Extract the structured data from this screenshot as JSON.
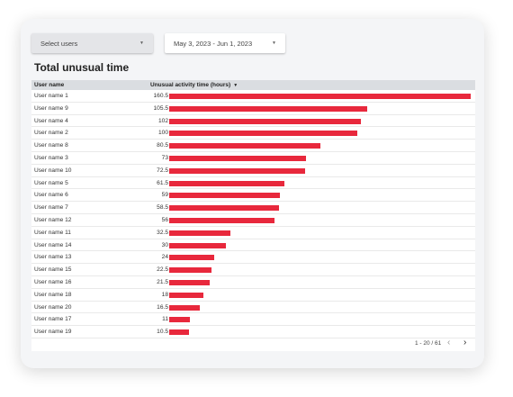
{
  "filters": {
    "users_label": "Select users",
    "date_range": "May 3, 2023 - Jun 1, 2023",
    "caret": "▼"
  },
  "title": "Total unusual time",
  "table": {
    "col_user": "User name",
    "col_time": "Unusual activity time (hours)",
    "sort_icon": "▼",
    "max_value": 160.5,
    "rows": [
      {
        "name": "User name 1",
        "value": 160.5
      },
      {
        "name": "User name 9",
        "value": 105.5
      },
      {
        "name": "User name 4",
        "value": 102
      },
      {
        "name": "User name 2",
        "value": 100
      },
      {
        "name": "User name 8",
        "value": 80.5
      },
      {
        "name": "User name 3",
        "value": 73
      },
      {
        "name": "User name 10",
        "value": 72.5
      },
      {
        "name": "User name 5",
        "value": 61.5
      },
      {
        "name": "User name 6",
        "value": 59
      },
      {
        "name": "User name 7",
        "value": 58.5
      },
      {
        "name": "User name 12",
        "value": 56
      },
      {
        "name": "User name 11",
        "value": 32.5
      },
      {
        "name": "User name 14",
        "value": 30
      },
      {
        "name": "User name 13",
        "value": 24
      },
      {
        "name": "User name 15",
        "value": 22.5
      },
      {
        "name": "User name 16",
        "value": 21.5
      },
      {
        "name": "User name 18",
        "value": 18
      },
      {
        "name": "User name 20",
        "value": 16.5
      },
      {
        "name": "User name 17",
        "value": 11
      },
      {
        "name": "User name 19",
        "value": 10.5
      }
    ]
  },
  "pagination": {
    "text": "1 - 20 / 61",
    "prev": "‹",
    "next": "›"
  },
  "colors": {
    "bar": "#e8283c"
  }
}
